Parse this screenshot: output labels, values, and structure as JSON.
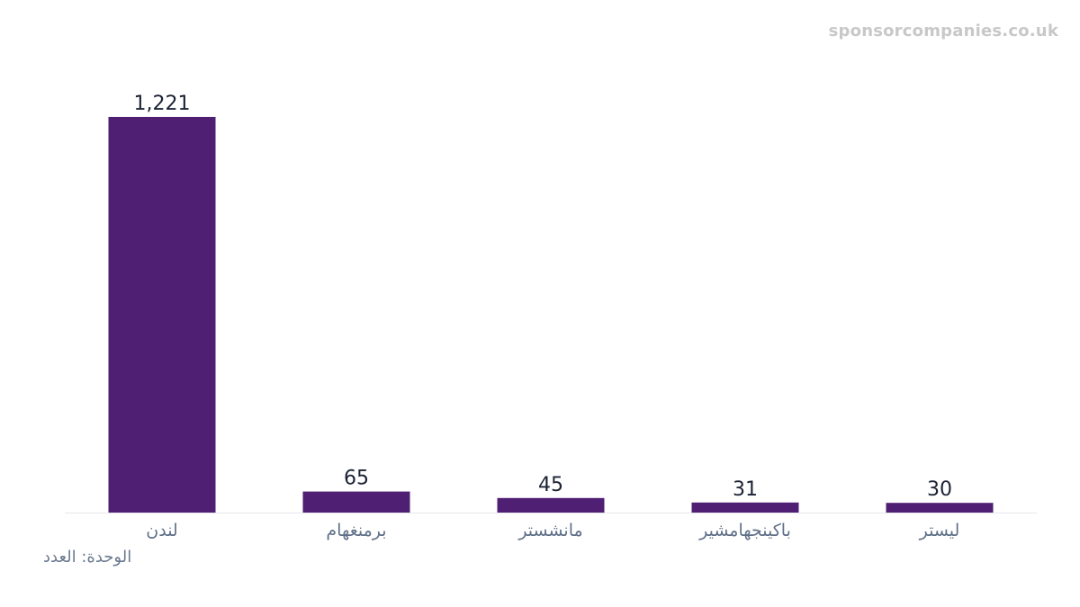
{
  "watermark": "sponsorcompanies.co.uk",
  "unit_label": "الوحدة: العدد",
  "colors": {
    "bar": "#4e1f73",
    "value_label": "#1a2233",
    "tick_label": "#5f6f88",
    "axis": "#e8e8ee"
  },
  "chart_data": {
    "type": "bar",
    "categories": [
      "لندن",
      "برمنغهام",
      "مانشستر",
      "باكينجهامشير",
      "ليستر"
    ],
    "values": [
      1221,
      65,
      45,
      31,
      30
    ],
    "value_labels": [
      "1,221",
      "65",
      "45",
      "31",
      "30"
    ],
    "title": "",
    "xlabel": "",
    "ylabel": "",
    "ylim": [
      0,
      1221
    ],
    "grid": false,
    "legend": "none"
  }
}
